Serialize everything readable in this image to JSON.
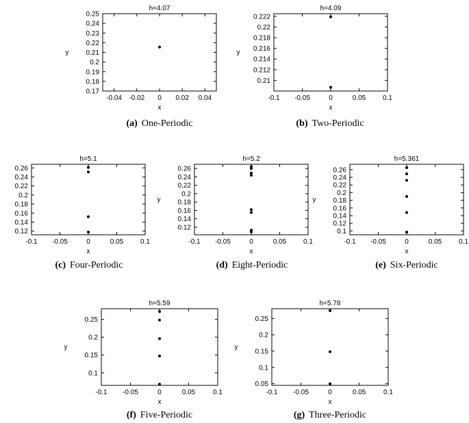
{
  "chart_data": [
    {
      "type": "scatter",
      "title": "h=4.07",
      "caption_letter": "(a)",
      "caption_text": "One-Periodic",
      "xlabel": "x",
      "ylabel": "y",
      "xlim": [
        -0.05,
        0.05
      ],
      "ylim": [
        0.17,
        0.25
      ],
      "xticks": [
        -0.04,
        -0.02,
        0,
        0.02,
        0.04
      ],
      "xtick_labels": [
        "-0.04",
        "-0.02",
        "0",
        "0.02",
        "0.04"
      ],
      "yticks": [
        0.17,
        0.18,
        0.19,
        0.2,
        0.21,
        0.22,
        0.23,
        0.24,
        0.25
      ],
      "ytick_labels": [
        "0.17",
        "0.18",
        "0.19",
        "0.2",
        "0.21",
        "0.22",
        "0.23",
        "0.24",
        "0.25"
      ],
      "points": [
        {
          "x": 0,
          "y": 0.2155
        }
      ]
    },
    {
      "type": "scatter",
      "title": "h=4.09",
      "caption_letter": "(b)",
      "caption_text": "Two-Periodic",
      "xlabel": "x",
      "ylabel": "y",
      "xlim": [
        -0.1,
        0.1
      ],
      "ylim": [
        0.208,
        0.2225
      ],
      "xticks": [
        -0.1,
        -0.05,
        0,
        0.05,
        0.1
      ],
      "xtick_labels": [
        "-0.1",
        "-0.05",
        "0",
        "0.05",
        "0.1"
      ],
      "yticks": [
        0.21,
        0.212,
        0.214,
        0.216,
        0.218,
        0.22,
        0.222
      ],
      "ytick_labels": [
        "0.21",
        "0.212",
        "0.214",
        "0.216",
        "0.218",
        "0.22",
        "0.222"
      ],
      "points": [
        {
          "x": 0,
          "y": 0.2219
        },
        {
          "x": 0,
          "y": 0.2087
        }
      ]
    },
    {
      "type": "scatter",
      "title": "h=5.1",
      "caption_letter": "(c)",
      "caption_text": "Four-Periodic",
      "xlabel": "x",
      "ylabel": "y",
      "xlim": [
        -0.1,
        0.1
      ],
      "ylim": [
        0.112,
        0.268
      ],
      "xticks": [
        -0.1,
        -0.05,
        0,
        0.05,
        0.1
      ],
      "xtick_labels": [
        "-0.1",
        "-0.05",
        "0",
        "0.05",
        "0.1"
      ],
      "yticks": [
        0.12,
        0.14,
        0.16,
        0.18,
        0.2,
        0.22,
        0.24,
        0.26
      ],
      "ytick_labels": [
        "0.12",
        "0.14",
        "0.16",
        "0.18",
        "0.2",
        "0.22",
        "0.24",
        "0.26"
      ],
      "points": [
        {
          "x": 0,
          "y": 0.261
        },
        {
          "x": 0,
          "y": 0.251
        },
        {
          "x": 0,
          "y": 0.152
        },
        {
          "x": 0,
          "y": 0.118
        }
      ]
    },
    {
      "type": "scatter",
      "title": "h=5.2",
      "caption_letter": "(d)",
      "caption_text": "Eight-Periodic",
      "xlabel": "x",
      "ylabel": "y",
      "xlim": [
        -0.1,
        0.1
      ],
      "ylim": [
        0.102,
        0.27
      ],
      "xticks": [
        -0.1,
        -0.05,
        0,
        0.05,
        0.1
      ],
      "xtick_labels": [
        "-0.1",
        "-0.05",
        "0",
        "0.05",
        "0.1"
      ],
      "yticks": [
        0.12,
        0.14,
        0.16,
        0.18,
        0.2,
        0.22,
        0.24,
        0.26
      ],
      "ytick_labels": [
        "0.12",
        "0.14",
        "0.16",
        "0.18",
        "0.2",
        "0.22",
        "0.24",
        "0.26"
      ],
      "points": [
        {
          "x": 0,
          "y": 0.2645
        },
        {
          "x": 0,
          "y": 0.26
        },
        {
          "x": 0,
          "y": 0.249
        },
        {
          "x": 0,
          "y": 0.244
        },
        {
          "x": 0,
          "y": 0.162
        },
        {
          "x": 0,
          "y": 0.155
        },
        {
          "x": 0,
          "y": 0.113
        },
        {
          "x": 0,
          "y": 0.109
        }
      ]
    },
    {
      "type": "scatter",
      "title": "h=5.361",
      "caption_letter": "(e)",
      "caption_text": "Six-Periodic",
      "xlabel": "x",
      "ylabel": "y",
      "xlim": [
        -0.1,
        0.1
      ],
      "ylim": [
        0.09,
        0.274
      ],
      "xticks": [
        -0.1,
        -0.05,
        0,
        0.05,
        0.1
      ],
      "xtick_labels": [
        "-0.1",
        "-0.05",
        "0",
        "0.05",
        "0.1"
      ],
      "yticks": [
        0.1,
        0.12,
        0.14,
        0.16,
        0.18,
        0.2,
        0.22,
        0.24,
        0.26
      ],
      "ytick_labels": [
        "0.1",
        "0.12",
        "0.14",
        "0.16",
        "0.18",
        "0.2",
        "0.22",
        "0.24",
        "0.26"
      ],
      "points": [
        {
          "x": 0,
          "y": 0.265
        },
        {
          "x": 0,
          "y": 0.249
        },
        {
          "x": 0,
          "y": 0.232
        },
        {
          "x": 0,
          "y": 0.19
        },
        {
          "x": 0,
          "y": 0.148
        },
        {
          "x": 0,
          "y": 0.097
        }
      ]
    },
    {
      "type": "scatter",
      "title": "h=5.59",
      "caption_letter": "(f)",
      "caption_text": "Five-Periodic",
      "xlabel": "x",
      "ylabel": "y",
      "xlim": [
        -0.1,
        0.1
      ],
      "ylim": [
        0.065,
        0.28
      ],
      "xticks": [
        -0.1,
        -0.05,
        0,
        0.05,
        0.1
      ],
      "xtick_labels": [
        "-0.1",
        "-0.05",
        "0",
        "0.05",
        "0.1"
      ],
      "yticks": [
        0.1,
        0.15,
        0.2,
        0.25
      ],
      "ytick_labels": [
        "0.1",
        "0.15",
        "0.2",
        "0.25"
      ],
      "points": [
        {
          "x": 0,
          "y": 0.272
        },
        {
          "x": 0,
          "y": 0.248
        },
        {
          "x": 0,
          "y": 0.196
        },
        {
          "x": 0,
          "y": 0.147
        },
        {
          "x": 0,
          "y": 0.068
        }
      ]
    },
    {
      "type": "scatter",
      "title": "h=5.78",
      "caption_letter": "(g)",
      "caption_text": "Three-Periodic",
      "xlabel": "x",
      "ylabel": "y",
      "xlim": [
        -0.1,
        0.1
      ],
      "ylim": [
        0.045,
        0.28
      ],
      "xticks": [
        -0.1,
        -0.05,
        0,
        0.05,
        0.1
      ],
      "xtick_labels": [
        "-0.1",
        "-0.05",
        "0",
        "0.05",
        "0.1"
      ],
      "yticks": [
        0.05,
        0.1,
        0.15,
        0.2,
        0.25
      ],
      "ytick_labels": [
        "0.05",
        "0.1",
        "0.15",
        "0.2",
        "0.25"
      ],
      "points": [
        {
          "x": 0,
          "y": 0.274
        },
        {
          "x": 0,
          "y": 0.148
        },
        {
          "x": 0,
          "y": 0.05
        }
      ]
    }
  ]
}
